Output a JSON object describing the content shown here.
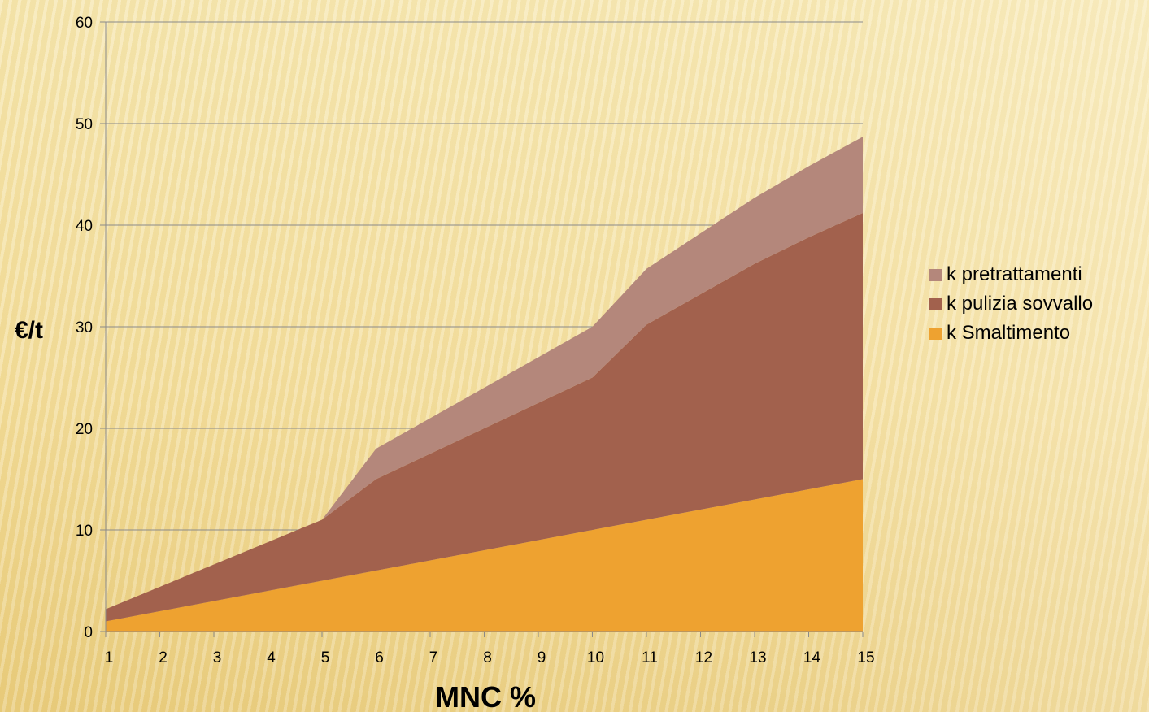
{
  "chart_data": {
    "type": "area",
    "stacked": true,
    "title": "",
    "xlabel": "MNC %",
    "ylabel": "€/t",
    "ylim": [
      0,
      60
    ],
    "yticks": [
      0,
      10,
      20,
      30,
      40,
      50,
      60
    ],
    "grid": "horizontal",
    "legend_position": "right",
    "x": [
      1,
      2,
      3,
      4,
      5,
      6,
      7,
      8,
      9,
      10,
      11,
      12,
      13,
      14,
      15
    ],
    "series": [
      {
        "name": "k Smaltimento",
        "color": "#eea230",
        "values": [
          1,
          2,
          3,
          4,
          5,
          6,
          7,
          8,
          9,
          10,
          11,
          12,
          13,
          14,
          15
        ]
      },
      {
        "name": "k pulizia sovvallo",
        "color": "#a2614d",
        "values": [
          1.2,
          2.4,
          3.6,
          4.8,
          6,
          9,
          10.5,
          12,
          13.5,
          15,
          19.2,
          21.2,
          23.2,
          24.8,
          26.2
        ]
      },
      {
        "name": "k pretrattamenti",
        "color": "#b4877b",
        "values": [
          0,
          0,
          0,
          0,
          0,
          3,
          3.5,
          4,
          4.5,
          5,
          5.5,
          6,
          6.5,
          7,
          7.5
        ]
      }
    ]
  }
}
